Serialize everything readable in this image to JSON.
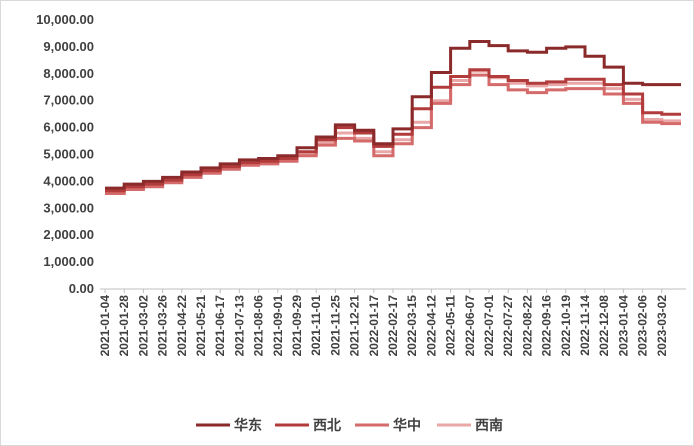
{
  "chart_data": {
    "type": "line",
    "title": "",
    "xlabel": "",
    "ylabel": "",
    "ylim": [
      0,
      10000
    ],
    "y_ticks": [
      "0.00",
      "1,000.00",
      "2,000.00",
      "3,000.00",
      "4,000.00",
      "5,000.00",
      "6,000.00",
      "7,000.00",
      "8,000.00",
      "9,000.00",
      "10,000.00"
    ],
    "x_tick_labels": [
      "2021-01-04",
      "2021-01-28",
      "2021-03-02",
      "2021-03-26",
      "2021-04-22",
      "2021-05-21",
      "2021-06-17",
      "2021-07-13",
      "2021-08-06",
      "2021-09-01",
      "2021-09-29",
      "2021-11-01",
      "2021-11-25",
      "2021-12-21",
      "2022-01-17",
      "2022-02-17",
      "2022-03-15",
      "2022-04-12",
      "2022-05-11",
      "2022-06-07",
      "2022-07-01",
      "2022-07-27",
      "2022-08-22",
      "2022-09-16",
      "2022-10-19",
      "2022-11-14",
      "2022-12-08",
      "2023-01-04",
      "2023-02-06",
      "2023-03-02"
    ],
    "x": [
      "2021-01-04",
      "2021-01-28",
      "2021-03-02",
      "2021-03-26",
      "2021-04-22",
      "2021-05-21",
      "2021-06-17",
      "2021-07-13",
      "2021-08-06",
      "2021-09-01",
      "2021-09-29",
      "2021-11-01",
      "2021-11-25",
      "2021-12-21",
      "2022-01-17",
      "2022-02-17",
      "2022-03-15",
      "2022-04-12",
      "2022-05-11",
      "2022-06-07",
      "2022-07-01",
      "2022-07-27",
      "2022-08-22",
      "2022-09-16",
      "2022-10-19",
      "2022-11-14",
      "2022-12-08",
      "2023-01-04",
      "2023-02-06",
      "2023-03-02",
      "2023-03-24"
    ],
    "legend_position": "bottom",
    "grid": false,
    "series": [
      {
        "name": "华东",
        "color": "#8b2a2a",
        "values": [
          3750,
          3900,
          4000,
          4150,
          4350,
          4500,
          4650,
          4800,
          4850,
          4950,
          5250,
          5650,
          6100,
          5900,
          5400,
          5950,
          7150,
          8050,
          8950,
          9200,
          9050,
          8850,
          8800,
          8950,
          9000,
          8650,
          8250,
          7650,
          7600,
          7600,
          7600
        ]
      },
      {
        "name": "西北",
        "color": "#b23b3b",
        "values": [
          3650,
          3800,
          3900,
          4050,
          4250,
          4400,
          4550,
          4700,
          4750,
          4850,
          5100,
          5550,
          6000,
          5800,
          5300,
          5750,
          6700,
          7500,
          7900,
          8150,
          7900,
          7750,
          7650,
          7700,
          7800,
          7800,
          7600,
          7250,
          6550,
          6500,
          6500
        ]
      },
      {
        "name": "华中",
        "color": "#d46a6a",
        "values": [
          3550,
          3700,
          3800,
          3950,
          4150,
          4300,
          4450,
          4600,
          4650,
          4750,
          4950,
          5350,
          5600,
          5500,
          4950,
          5400,
          6000,
          6900,
          7600,
          7950,
          7600,
          7400,
          7300,
          7400,
          7450,
          7450,
          7250,
          6900,
          6200,
          6150,
          6150
        ]
      },
      {
        "name": "西南",
        "color": "#e9a7a7",
        "values": [
          3600,
          3750,
          3850,
          4000,
          4200,
          4350,
          4500,
          4650,
          4700,
          4800,
          5000,
          5450,
          5800,
          5600,
          5100,
          5550,
          6200,
          7000,
          7750,
          8100,
          7850,
          7650,
          7550,
          7600,
          7650,
          7650,
          7450,
          7050,
          6300,
          6250,
          6250
        ]
      }
    ]
  }
}
